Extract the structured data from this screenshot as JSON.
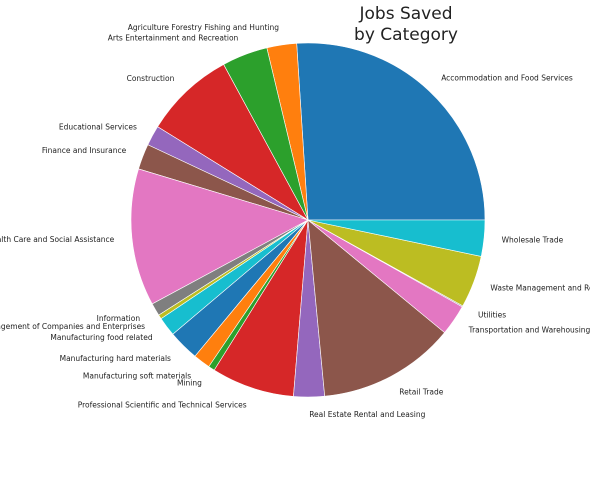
{
  "chart_data": {
    "type": "pie",
    "title_lines": [
      "Jobs Saved",
      "by Category"
    ],
    "start_angle_deg": 0,
    "direction": "counterclockwise",
    "grid": false,
    "legend": "none",
    "slices": [
      {
        "label": "Accommodation and Food Services",
        "value": 26.8,
        "color": "#1f77b4"
      },
      {
        "label": "Agriculture Forestry Fishing and Hunting",
        "value": 2.8,
        "color": "#ff7f0e"
      },
      {
        "label": "Arts Entertainment and Recreation",
        "value": 4.3,
        "color": "#2ca02c"
      },
      {
        "label": "Construction",
        "value": 8.5,
        "color": "#d62728"
      },
      {
        "label": "Educational Services",
        "value": 1.9,
        "color": "#9467bd"
      },
      {
        "label": "Finance and Insurance",
        "value": 2.4,
        "color": "#8c564b"
      },
      {
        "label": "Health Care and Social Assistance",
        "value": 12.9,
        "color": "#e377c2"
      },
      {
        "label": "Information",
        "value": 1.2,
        "color": "#7f7f7f"
      },
      {
        "label": "Management of Companies and Enterprises",
        "value": 0.4,
        "color": "#bcbd22"
      },
      {
        "label": "Manufacturing food related",
        "value": 1.8,
        "color": "#17becf"
      },
      {
        "label": "Manufacturing hard materials",
        "value": 2.9,
        "color": "#1f77b4"
      },
      {
        "label": "Manufacturing soft materials",
        "value": 1.6,
        "color": "#ff7f0e"
      },
      {
        "label": "Mining",
        "value": 0.6,
        "color": "#2ca02c"
      },
      {
        "label": "Professional Scientific and Technical Services",
        "value": 7.8,
        "color": "#d62728"
      },
      {
        "label": "Real Estate Rental and Leasing",
        "value": 2.9,
        "color": "#9467bd"
      },
      {
        "label": "Retail Trade",
        "value": 12.9,
        "color": "#8c564b"
      },
      {
        "label": "Transportation and Warehousing",
        "value": 2.9,
        "color": "#e377c2"
      },
      {
        "label": "Utilities",
        "value": 0.1,
        "color": "#7f7f7f"
      },
      {
        "label": "Waste Management and Remediation Services",
        "value": 4.9,
        "color": "#bcbd22"
      },
      {
        "label": "Wholesale Trade",
        "value": 3.4,
        "color": "#17becf"
      }
    ]
  }
}
